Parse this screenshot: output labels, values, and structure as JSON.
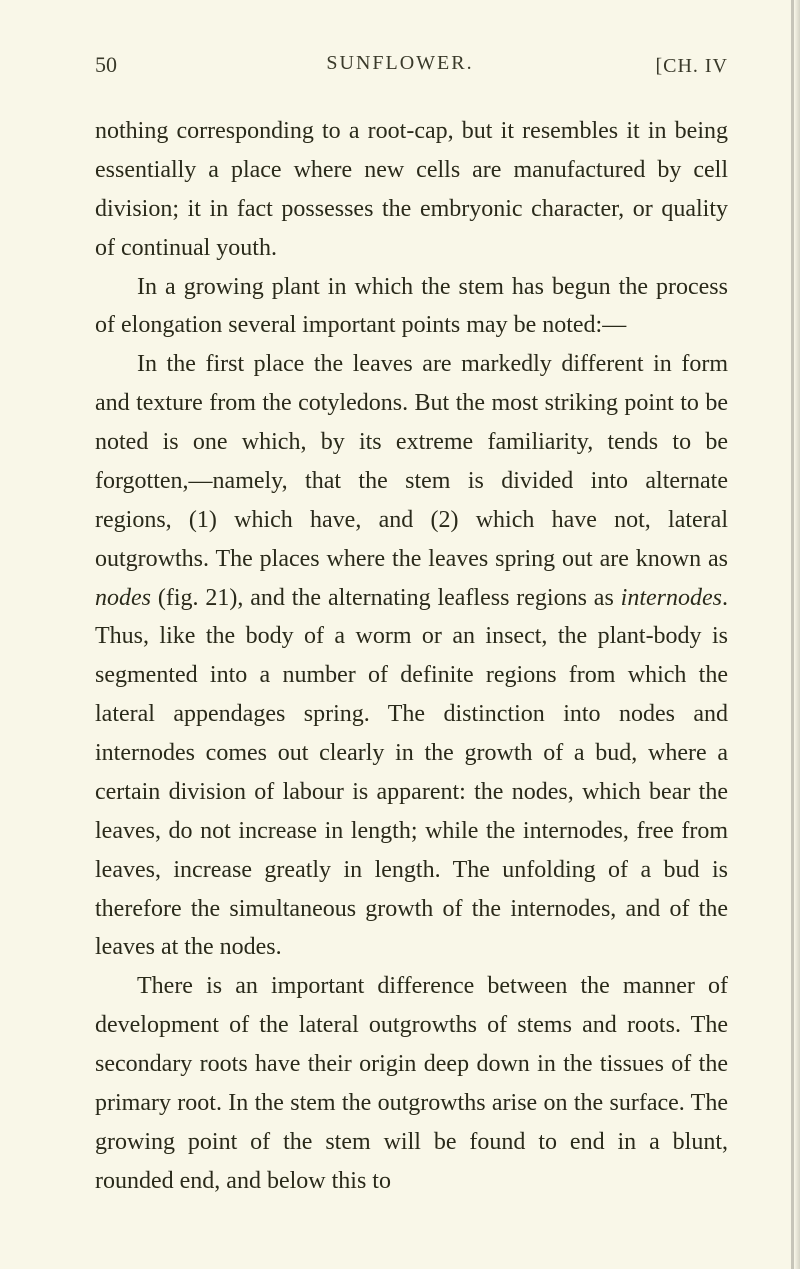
{
  "page": {
    "number": "50",
    "running_title": "SUNFLOWER.",
    "chapter_marker": "[CH. IV",
    "background_color": "#f9f7e8",
    "text_color": "#2a2a1a",
    "font_family": "Times New Roman",
    "body_fontsize": 24,
    "line_height": 1.62
  },
  "paragraphs": {
    "p1_part1": "nothing corresponding to a root-cap, but it resembles it in being essentially a place where new cells are manufactured by cell division; it in fact possesses the embryonic character, or quality of continual youth.",
    "p2": "In a growing plant in which the stem has begun the process of elongation several important points may be noted:—",
    "p3_part1": "In the first place the leaves are markedly different in form and texture from the cotyledons. But the most striking point to be noted is one which, by its extreme familiarity, tends to be forgotten,—namely, that the stem is divided into alternate regions, (1) which have, and (2) which have not, lateral outgrowths. The places where the leaves spring out are known as ",
    "p3_italic1": "nodes",
    "p3_part2": " (fig. 21), and the alternating leafless regions as ",
    "p3_italic2": "internodes",
    "p3_part3": ". Thus, like the body of a worm or an insect, the plant-body is segmented into a number of definite regions from which the lateral appendages spring. The distinction into nodes and internodes comes out clearly in the growth of a bud, where a certain division of labour is apparent: the nodes, which bear the leaves, do not increase in length; while the internodes, free from leaves, increase greatly in length. The unfolding of a bud is therefore the simultaneous growth of the internodes, and of the leaves at the nodes.",
    "p4": "There is an important difference between the manner of development of the lateral outgrowths of stems and roots. The secondary roots have their origin deep down in the tissues of the primary root. In the stem the outgrowths arise on the surface. The growing point of the stem will be found to end in a blunt, rounded end, and below this to"
  }
}
